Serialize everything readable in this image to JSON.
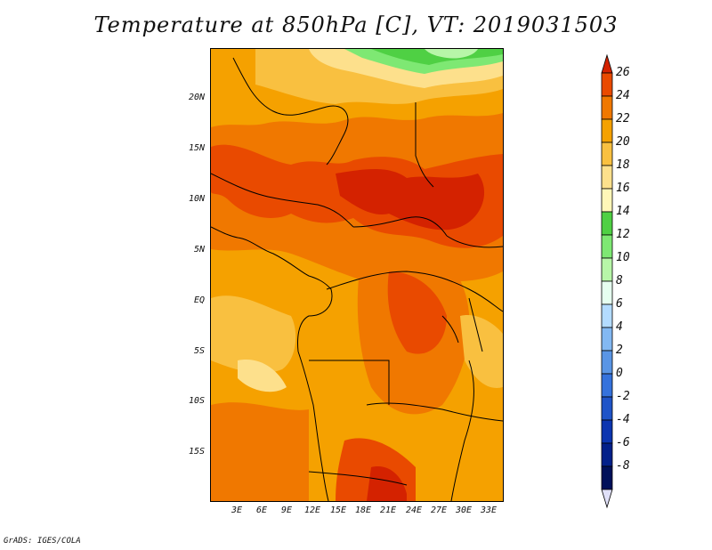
{
  "title": "Temperature at 850hPa [C], VT: 2019031503",
  "credit": "GrADS: IGES/COLA",
  "map": {
    "lon_range": [
      0,
      34
    ],
    "lat_range": [
      -20,
      25
    ],
    "lat_labels": [
      "20N",
      "15N",
      "10N",
      "5N",
      "EQ",
      "5S",
      "10S",
      "15S"
    ],
    "lon_labels": [
      "3E",
      "6E",
      "9E",
      "12E",
      "15E",
      "18E",
      "21E",
      "24E",
      "27E",
      "30E",
      "33E"
    ],
    "variable": "temperature_850hPa",
    "units": "C"
  },
  "colorbar": {
    "labels": [
      "26",
      "24",
      "22",
      "20",
      "18",
      "16",
      "14",
      "12",
      "10",
      "8",
      "6",
      "4",
      "2",
      "0",
      "-2",
      "-4",
      "-6",
      "-8"
    ],
    "colors": [
      "#d42200",
      "#e94a00",
      "#f07800",
      "#f5a100",
      "#f9c040",
      "#fde08c",
      "#fff7b8",
      "#4fd044",
      "#7ee873",
      "#b7f6a8",
      "#e6fff0",
      "#b3dbff",
      "#83b8f2",
      "#5a95e5",
      "#3572dc",
      "#1f54c8",
      "#0c35b0",
      "#03208a",
      "#00105a",
      "#e0e0f8"
    ]
  }
}
